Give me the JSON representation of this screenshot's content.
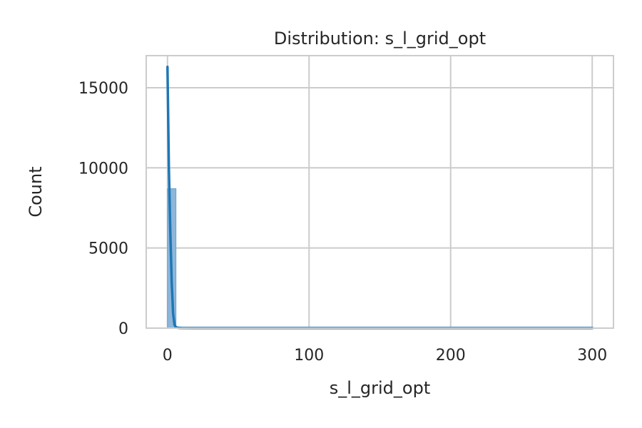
{
  "chart_data": {
    "type": "histogram",
    "title": "Distribution: s_l_grid_opt",
    "xlabel": "s_l_grid_opt",
    "ylabel": "Count",
    "xlim": [
      -15,
      315
    ],
    "ylim": [
      0,
      17000
    ],
    "x_ticks": [
      0,
      100,
      200,
      300
    ],
    "y_ticks": [
      0,
      5000,
      10000,
      15000
    ],
    "grid": true,
    "bars": [
      {
        "x0": 0,
        "x1": 6,
        "count": 8700
      },
      {
        "x0": 6,
        "x1": 300,
        "count": 20
      }
    ],
    "kde": {
      "x": [
        0,
        1,
        2,
        3,
        4,
        5,
        6,
        8,
        10,
        20,
        50,
        100,
        150,
        200,
        250,
        300
      ],
      "y": [
        16300,
        10000,
        6000,
        2800,
        900,
        200,
        50,
        15,
        10,
        8,
        6,
        5,
        5,
        5,
        5,
        5
      ]
    },
    "colors": {
      "bar_fill": "#8db6da",
      "bar_edge": "#6a9fcf",
      "kde_line": "#1f77b4",
      "grid": "#cccccc",
      "axes_edge": "#cccccc",
      "text": "#262626"
    }
  }
}
